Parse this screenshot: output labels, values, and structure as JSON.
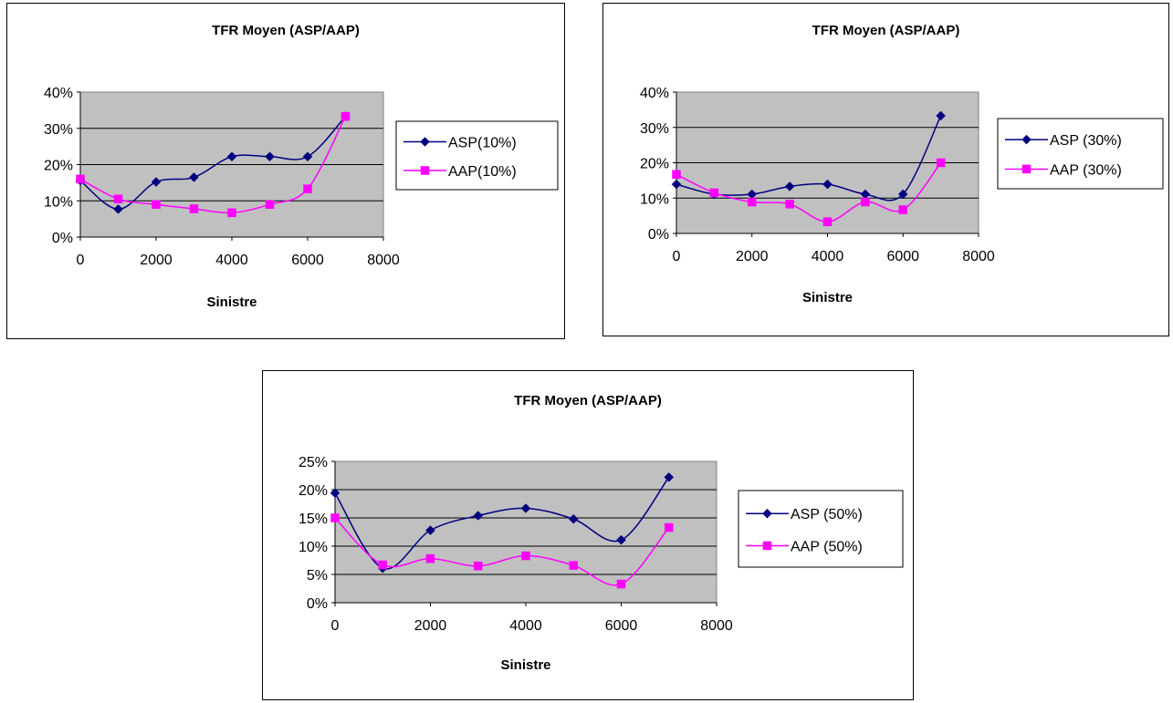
{
  "chart_data": [
    {
      "type": "line",
      "title": "TFR Moyen (ASP/AAP)",
      "xlabel": "Sinistre",
      "ylabel": "",
      "xlim": [
        0,
        8000
      ],
      "ylim": [
        0,
        0.4
      ],
      "x_ticks": [
        "0",
        "2000",
        "4000",
        "6000",
        "8000"
      ],
      "y_ticks": [
        "0%",
        "10%",
        "20%",
        "30%",
        "40%"
      ],
      "grid": true,
      "plot_background": "#c0c0c0",
      "legend": "right",
      "series": [
        {
          "name": "ASP(10%)",
          "color": "#000080",
          "marker": "diamond",
          "x": [
            0,
            1000,
            2000,
            3000,
            4000,
            5000,
            6000,
            7000
          ],
          "y": [
            0.156,
            0.077,
            0.152,
            0.165,
            0.222,
            0.222,
            0.222,
            0.333
          ]
        },
        {
          "name": "AAP(10%)",
          "color": "#ff00ff",
          "marker": "square",
          "x": [
            0,
            1000,
            2000,
            3000,
            4000,
            5000,
            6000,
            7000
          ],
          "y": [
            0.16,
            0.105,
            0.09,
            0.078,
            0.067,
            0.09,
            0.133,
            0.333
          ]
        }
      ]
    },
    {
      "type": "line",
      "title": "TFR Moyen (ASP/AAP)",
      "xlabel": "Sinistre",
      "ylabel": "",
      "xlim": [
        0,
        8000
      ],
      "ylim": [
        0,
        0.4
      ],
      "x_ticks": [
        "0",
        "2000",
        "4000",
        "6000",
        "8000"
      ],
      "y_ticks": [
        "0%",
        "10%",
        "20%",
        "30%",
        "40%"
      ],
      "grid": true,
      "plot_background": "#c0c0c0",
      "legend": "right",
      "series": [
        {
          "name": "ASP (30%)",
          "color": "#000080",
          "marker": "diamond",
          "x": [
            0,
            1000,
            2000,
            3000,
            4000,
            5000,
            6000,
            7000
          ],
          "y": [
            0.139,
            0.111,
            0.111,
            0.133,
            0.139,
            0.111,
            0.111,
            0.333
          ]
        },
        {
          "name": "AAP (30%)",
          "color": "#ff00ff",
          "marker": "square",
          "x": [
            0,
            1000,
            2000,
            3000,
            4000,
            5000,
            6000,
            7000
          ],
          "y": [
            0.167,
            0.115,
            0.089,
            0.083,
            0.033,
            0.089,
            0.067,
            0.2
          ]
        }
      ]
    },
    {
      "type": "line",
      "title": "TFR Moyen (ASP/AAP)",
      "xlabel": "Sinistre",
      "ylabel": "",
      "xlim": [
        0,
        8000
      ],
      "ylim": [
        0,
        0.25
      ],
      "x_ticks": [
        "0",
        "2000",
        "4000",
        "6000",
        "8000"
      ],
      "y_ticks": [
        "0%",
        "5%",
        "10%",
        "15%",
        "20%",
        "25%"
      ],
      "grid": true,
      "plot_background": "#c0c0c0",
      "legend": "right",
      "series": [
        {
          "name": "ASP (50%)",
          "color": "#000080",
          "marker": "diamond",
          "x": [
            0,
            1000,
            2000,
            3000,
            4000,
            5000,
            6000,
            7000
          ],
          "y": [
            0.194,
            0.061,
            0.128,
            0.154,
            0.167,
            0.148,
            0.111,
            0.222
          ]
        },
        {
          "name": "AAP (50%)",
          "color": "#ff00ff",
          "marker": "square",
          "x": [
            0,
            1000,
            2000,
            3000,
            4000,
            5000,
            6000,
            7000
          ],
          "y": [
            0.15,
            0.067,
            0.078,
            0.065,
            0.083,
            0.066,
            0.033,
            0.133
          ]
        }
      ]
    }
  ]
}
